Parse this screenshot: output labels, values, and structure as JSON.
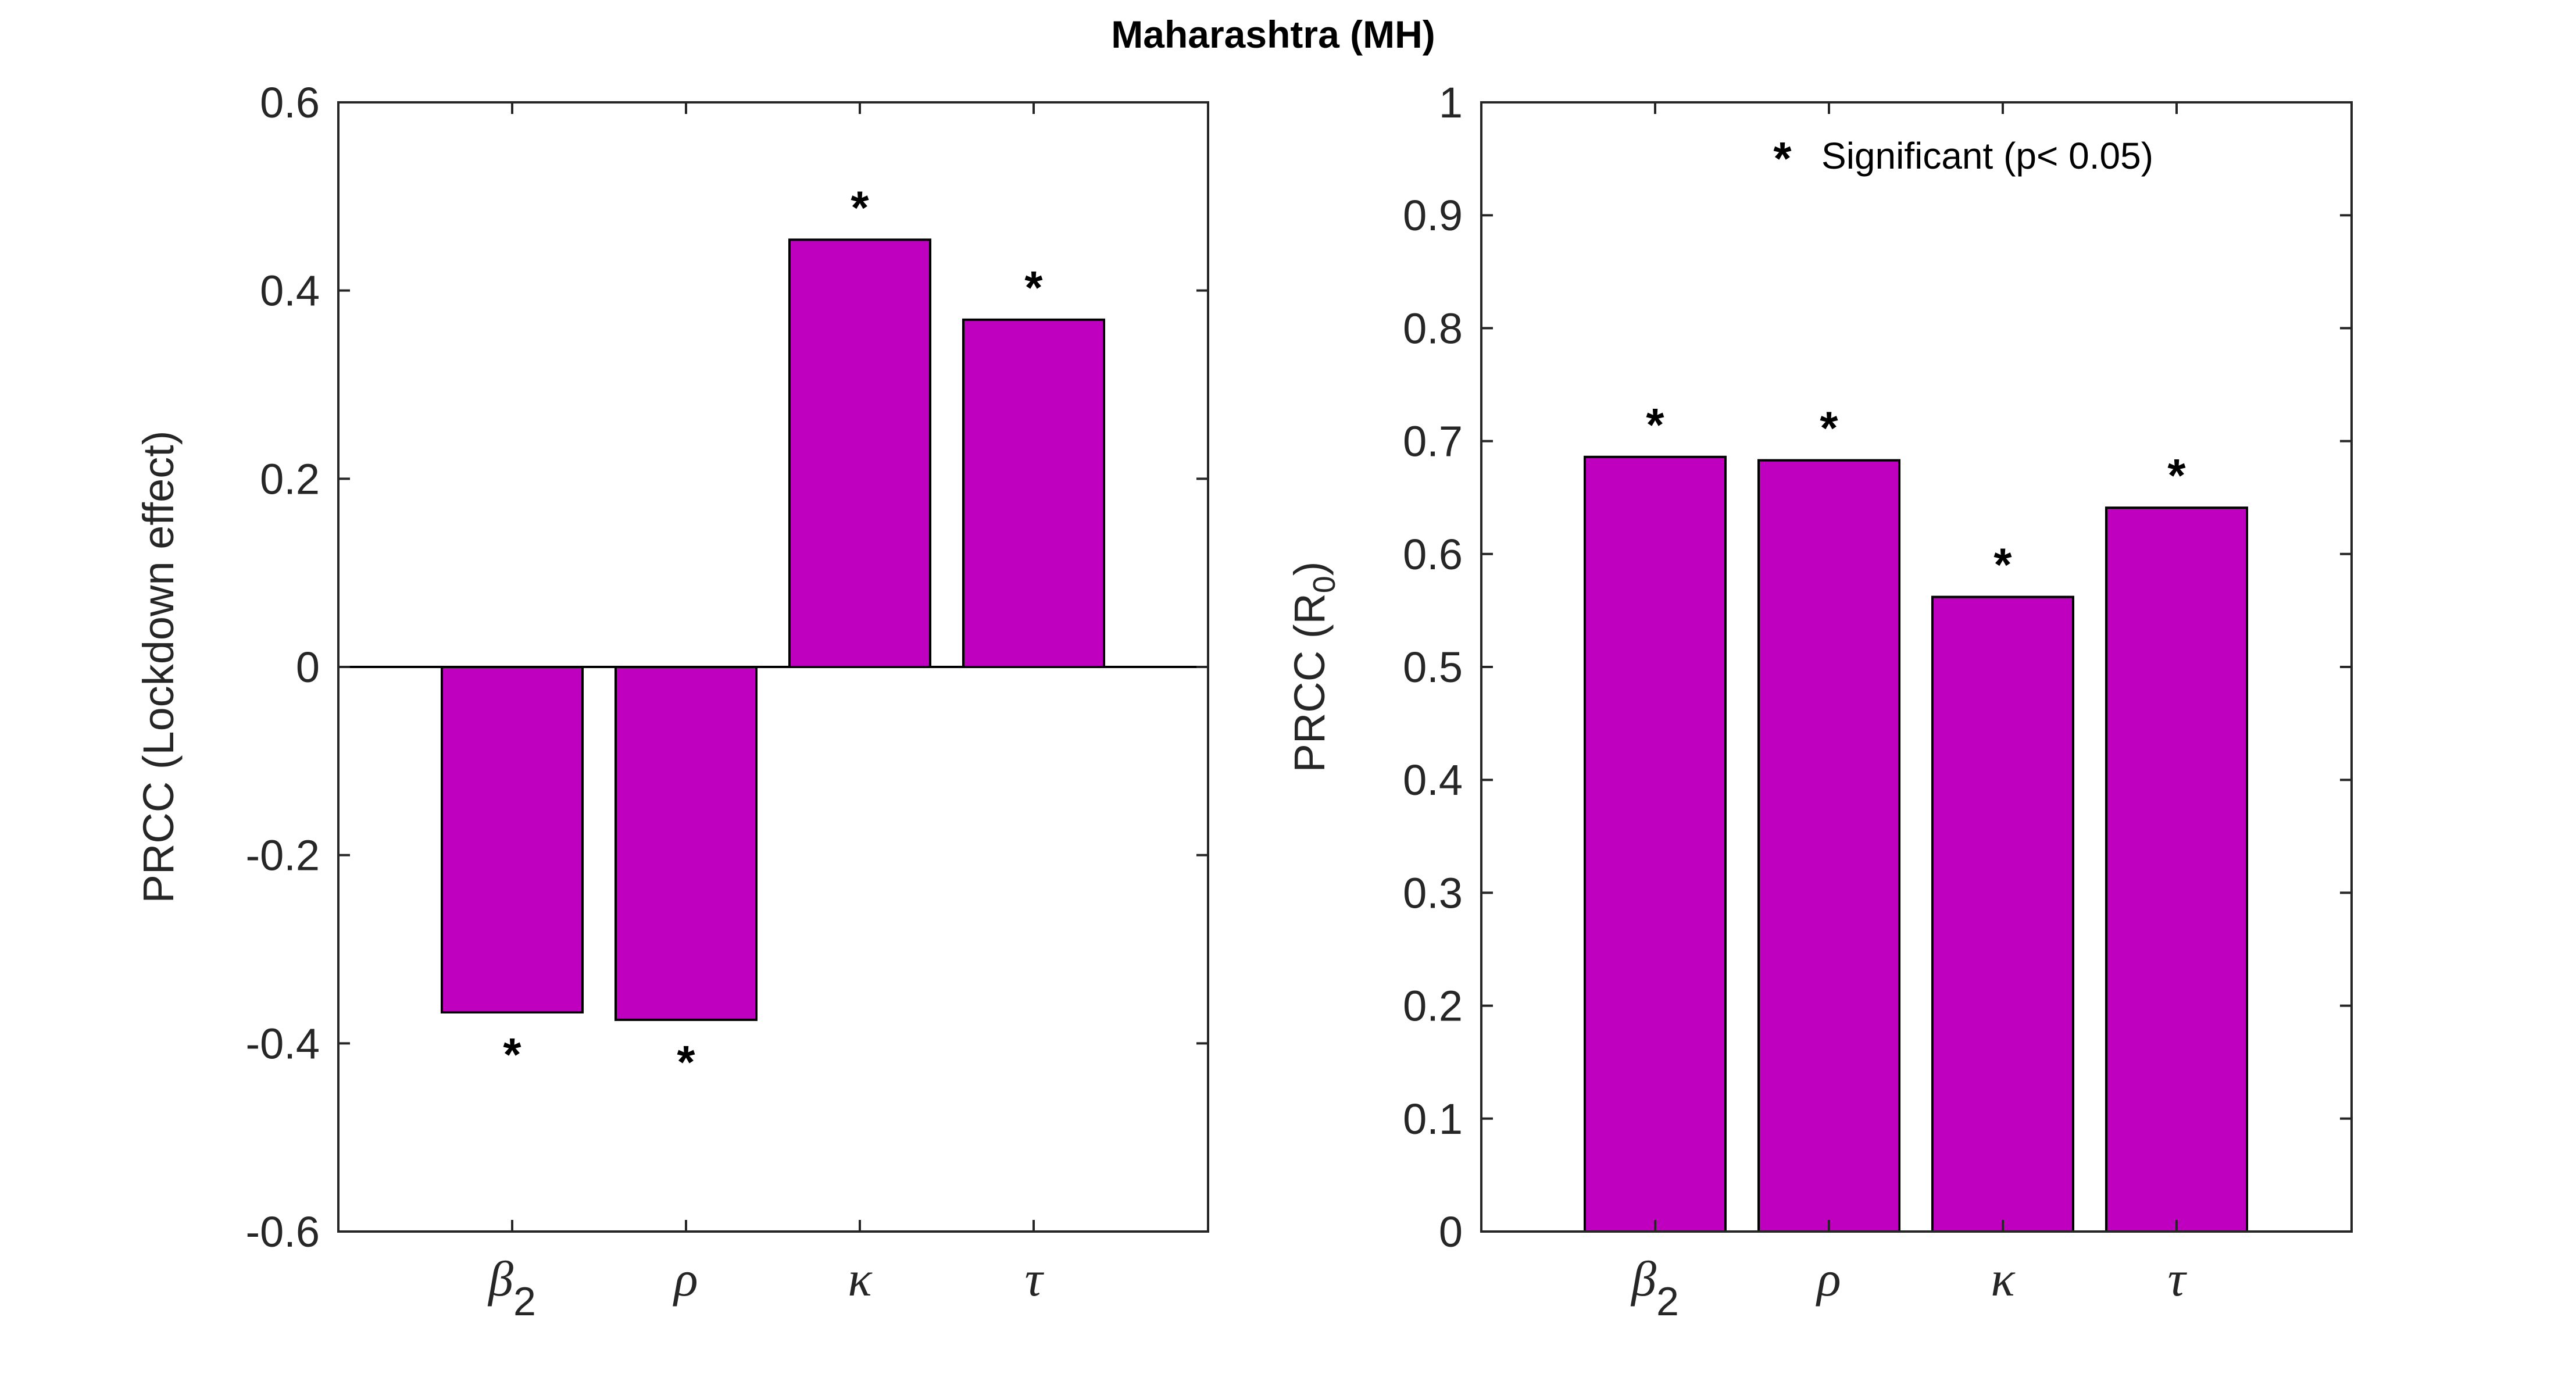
{
  "figure_title": "Maharashtra (MH)",
  "colors": {
    "bar": "#BF00BF",
    "axis": "#262626",
    "text": "#262626"
  },
  "chart_data": [
    {
      "type": "bar",
      "title": "",
      "xlabel": "",
      "ylabel": "PRCC (Lockdown effect)",
      "ylim": [
        -0.6,
        0.6
      ],
      "yticks": [
        -0.6,
        -0.4,
        -0.2,
        0,
        0.2,
        0.4,
        0.6
      ],
      "ytick_labels": [
        "-0.6",
        "-0.4",
        "-0.2",
        "0",
        "0.2",
        "0.4",
        "0.6"
      ],
      "categories": [
        {
          "base": "β",
          "sub": "2"
        },
        {
          "base": "ρ",
          "sub": ""
        },
        {
          "base": "κ",
          "sub": ""
        },
        {
          "base": "τ",
          "sub": ""
        }
      ],
      "values": [
        -0.367,
        -0.375,
        0.454,
        0.369
      ],
      "significant": [
        true,
        true,
        true,
        true
      ],
      "significance_marker": "*",
      "zero_line": true,
      "legend": null
    },
    {
      "type": "bar",
      "title": "",
      "xlabel": "",
      "ylabel_base": "PRCC (R",
      "ylabel_sub": "0",
      "ylabel_end": ")",
      "ylim": [
        0,
        1
      ],
      "yticks": [
        0,
        0.1,
        0.2,
        0.3,
        0.4,
        0.5,
        0.6,
        0.7,
        0.8,
        0.9,
        1
      ],
      "ytick_labels": [
        "0",
        "0.1",
        "0.2",
        "0.3",
        "0.4",
        "0.5",
        "0.6",
        "0.7",
        "0.8",
        "0.9",
        "1"
      ],
      "categories": [
        {
          "base": "β",
          "sub": "2"
        },
        {
          "base": "ρ",
          "sub": ""
        },
        {
          "base": "κ",
          "sub": ""
        },
        {
          "base": "τ",
          "sub": ""
        }
      ],
      "values": [
        0.686,
        0.683,
        0.562,
        0.641
      ],
      "significant": [
        true,
        true,
        true,
        true
      ],
      "significance_marker": "*",
      "zero_line": false,
      "legend": {
        "marker": "*",
        "label": "Significant (p< 0.05)",
        "position": "top-right"
      }
    }
  ]
}
